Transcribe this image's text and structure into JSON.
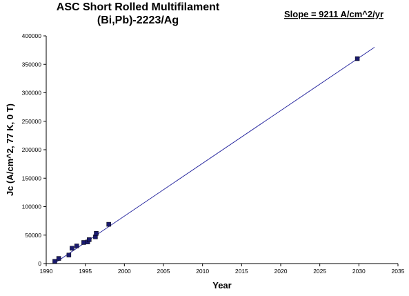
{
  "chart_data": {
    "type": "scatter",
    "title_lines": [
      "ASC Short Rolled Multifilament",
      "(Bi,Pb)-2223/Ag"
    ],
    "annotation": "Slope = 9211 A/cm^2/yr",
    "xlabel": "Year",
    "ylabel": "Jc (A/cm^2, 77 K, 0 T)",
    "xlim": [
      1990,
      2035
    ],
    "ylim": [
      0,
      400000
    ],
    "x_ticks": [
      1990,
      1995,
      2000,
      2005,
      2010,
      2015,
      2020,
      2025,
      2030,
      2035
    ],
    "y_ticks": [
      0,
      50000,
      100000,
      150000,
      200000,
      250000,
      300000,
      350000,
      400000
    ],
    "grid": false,
    "legend": "none",
    "series": [
      {
        "points": [
          {
            "x": 1991.1,
            "y": 4000
          },
          {
            "x": 1991.6,
            "y": 9000
          },
          {
            "x": 1992.9,
            "y": 15000
          },
          {
            "x": 1993.3,
            "y": 27000
          },
          {
            "x": 1993.9,
            "y": 31000
          },
          {
            "x": 1994.8,
            "y": 37000
          },
          {
            "x": 1995.3,
            "y": 38000
          },
          {
            "x": 1995.5,
            "y": 42000
          },
          {
            "x": 1996.3,
            "y": 47000
          },
          {
            "x": 1996.4,
            "y": 53000
          },
          {
            "x": 1998.0,
            "y": 69000
          },
          {
            "x": 2029.8,
            "y": 360000
          }
        ],
        "color": "#1a1a6e"
      }
    ],
    "trendline": {
      "from": {
        "x": 1991.0,
        "y": 0
      },
      "to": {
        "x": 2032.0,
        "y": 380000
      },
      "color": "#2a2aa0"
    }
  }
}
